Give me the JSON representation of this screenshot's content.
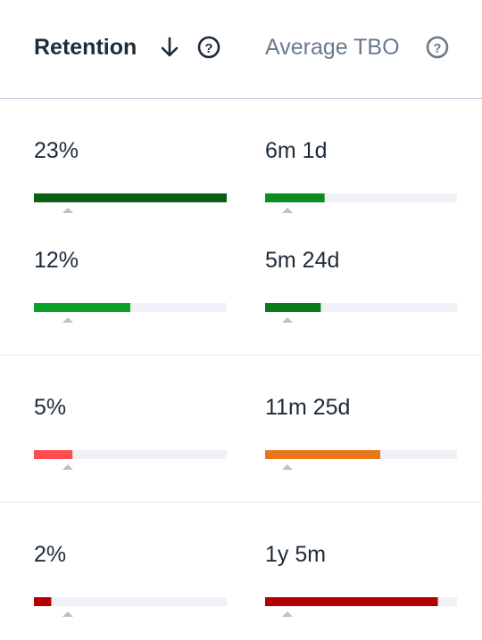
{
  "header": {
    "columns": [
      {
        "label": "Retention"
      },
      {
        "label": "Average TBO"
      }
    ]
  },
  "groups": [
    {
      "rows": [
        {
          "retention": {
            "text": "23%",
            "bar": 100,
            "color": "#0b5e12"
          },
          "tbo": {
            "text": "6m 1d",
            "bar": 31,
            "color": "#0a8f1e"
          }
        },
        {
          "retention": {
            "text": "12%",
            "bar": 50,
            "color": "#0aa12a"
          },
          "tbo": {
            "text": "5m 24d",
            "bar": 29,
            "color": "#0b7a18"
          }
        }
      ]
    },
    {
      "rows": [
        {
          "retention": {
            "text": "5%",
            "bar": 20,
            "color": "#ff4d4d"
          },
          "tbo": {
            "text": "11m 25d",
            "bar": 60,
            "color": "#e8771a"
          }
        }
      ]
    },
    {
      "rows": [
        {
          "retention": {
            "text": "2%",
            "bar": 9,
            "color": "#b30000"
          },
          "tbo": {
            "text": "1y 5m",
            "bar": 90,
            "color": "#b00000"
          }
        }
      ]
    }
  ]
}
